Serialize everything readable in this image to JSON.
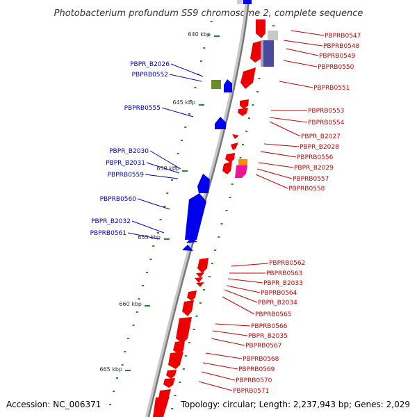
{
  "title": "Photobacterium profundum SS9 chromosome 2, complete sequence",
  "kbp_labels": [
    "640 kbp",
    "645 kbp",
    "650 kbp",
    "655 kbp",
    "660 kbp",
    "665 kbp"
  ],
  "genes_reverse": [
    "PBPR_B2026",
    "PBPRB0552",
    "PBPRB0555",
    "PBPR_B2030",
    "PBPR_B2031",
    "PBPRB0559",
    "PBPRB0560",
    "PBPR_B2032",
    "PBPRB0561"
  ],
  "genes_forward": [
    "PBPRB0547",
    "PBPRB0548",
    "PBPRB0549",
    "PBPRB0550",
    "PBPRB0551",
    "PBPRB0553",
    "PBPRB0554",
    "PBPR_B2027",
    "PBPR_B2028",
    "PBPRB0556",
    "PBPR_B2029",
    "PBPRB0557",
    "PBPRB0558",
    "PBPRB0562",
    "PBPRB0563",
    "PBPR_B2033",
    "PBPRB0564",
    "PBPR_B2034",
    "PBPRB0565",
    "PBPRB0566",
    "PBPR_B2035",
    "PBPRB0567",
    "PBPRB0568",
    "PBPRB0569",
    "PBPRB0570",
    "PBPRB0571"
  ],
  "colors": {
    "forward_strand": "#ee0000",
    "reverse_strand": "#0000ee",
    "gc_dots": "#228b22",
    "backbone": "#777777"
  },
  "footer": {
    "accession": "Accession: NC_006371",
    "topology": "Topology: circular; Length: 2,237,943 bp; Genes: 2,029"
  }
}
